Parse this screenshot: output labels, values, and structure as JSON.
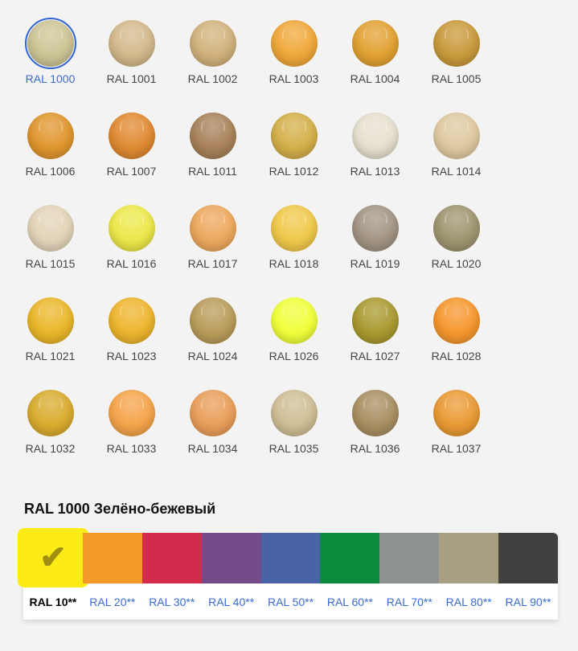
{
  "colors": [
    {
      "label": "RAL 1000",
      "hex": "#cdc595",
      "selected": true
    },
    {
      "label": "RAL 1001",
      "hex": "#d3b98c"
    },
    {
      "label": "RAL 1002",
      "hex": "#d1b27c"
    },
    {
      "label": "RAL 1003",
      "hex": "#f0a83a"
    },
    {
      "label": "RAL 1004",
      "hex": "#e2a233"
    },
    {
      "label": "RAL 1005",
      "hex": "#c99a3c"
    },
    {
      "label": "RAL 1006",
      "hex": "#e0962e"
    },
    {
      "label": "RAL 1007",
      "hex": "#e08a32"
    },
    {
      "label": "RAL 1011",
      "hex": "#a8825a"
    },
    {
      "label": "RAL 1012",
      "hex": "#d4b04a"
    },
    {
      "label": "RAL 1013",
      "hex": "#e6e0cf"
    },
    {
      "label": "RAL 1014",
      "hex": "#dfc9a0"
    },
    {
      "label": "RAL 1015",
      "hex": "#e3d4b8"
    },
    {
      "label": "RAL 1016",
      "hex": "#ece84a"
    },
    {
      "label": "RAL 1017",
      "hex": "#eda85e"
    },
    {
      "label": "RAL 1018",
      "hex": "#f0c94a"
    },
    {
      "label": "RAL 1019",
      "hex": "#a39584"
    },
    {
      "label": "RAL 1020",
      "hex": "#9f9570"
    },
    {
      "label": "RAL 1021",
      "hex": "#eab72a"
    },
    {
      "label": "RAL 1023",
      "hex": "#eeb52e"
    },
    {
      "label": "RAL 1024",
      "hex": "#b99c5a"
    },
    {
      "label": "RAL 1026",
      "hex": "#f0ff3a"
    },
    {
      "label": "RAL 1027",
      "hex": "#a99a30"
    },
    {
      "label": "RAL 1028",
      "hex": "#f6972e"
    },
    {
      "label": "RAL 1032",
      "hex": "#d9ac2e"
    },
    {
      "label": "RAL 1033",
      "hex": "#f5a44a"
    },
    {
      "label": "RAL 1034",
      "hex": "#e99e5a"
    },
    {
      "label": "RAL 1035",
      "hex": "#cfbe95"
    },
    {
      "label": "RAL 1036",
      "hex": "#a98f62"
    },
    {
      "label": "RAL 1037",
      "hex": "#ea9a35"
    }
  ],
  "selected_title": "RAL 1000 Зелёно-бежевый",
  "groups": [
    {
      "label": "RAL 10**",
      "hex": "#fdeb17",
      "selected": true,
      "icon": "check-icon",
      "icon_glyph": "✔"
    },
    {
      "label": "RAL 20**",
      "hex": "#f59a28"
    },
    {
      "label": "RAL 30**",
      "hex": "#d22b4b"
    },
    {
      "label": "RAL 40**",
      "hex": "#744a88"
    },
    {
      "label": "RAL 50**",
      "hex": "#4863a6"
    },
    {
      "label": "RAL 60**",
      "hex": "#0b8b3e"
    },
    {
      "label": "RAL 70**",
      "hex": "#8f9293"
    },
    {
      "label": "RAL 80**",
      "hex": "#a89f82"
    },
    {
      "label": "RAL 90**",
      "hex": "#404040"
    }
  ]
}
